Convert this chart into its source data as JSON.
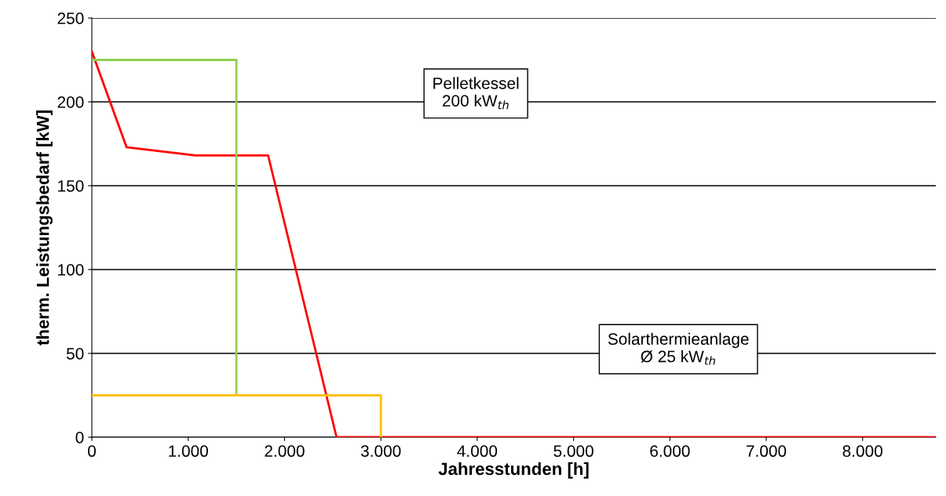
{
  "chart_data": {
    "type": "line",
    "xlabel": "Jahresstunden [h]",
    "ylabel": "therm. Leistungsbedarf [kW]",
    "series": [
      {
        "color": "#ff0000",
        "x": [
          0,
          360,
          1075,
          1830,
          2540,
          8760
        ],
        "values": [
          230,
          173,
          168,
          168,
          0,
          0
        ]
      },
      {
        "color": "#92d050",
        "x": [
          0,
          1500,
          1500
        ],
        "values": [
          225,
          225,
          25
        ]
      },
      {
        "color": "#ffc000",
        "x": [
          0,
          3000,
          3000
        ],
        "values": [
          25,
          25,
          0
        ]
      }
    ],
    "xlim": [
      0,
      8760
    ],
    "xticks": [
      0,
      {
        "value": 1000,
        "label": "1.000"
      },
      {
        "value": 2000,
        "label": "2.000"
      },
      {
        "value": 3000,
        "label": "3.000"
      },
      {
        "value": 4000,
        "label": "4.000"
      },
      {
        "value": 5000,
        "label": "5.000"
      },
      {
        "value": 6000,
        "label": "6.000"
      },
      {
        "value": 7000,
        "label": "7.000"
      },
      {
        "value": 8000,
        "label": "8.000"
      }
    ],
    "ylim": [
      0,
      250
    ],
    "yticks": [
      0,
      50,
      100,
      150,
      200,
      250
    ],
    "grid": "y",
    "marker": "none",
    "line_style": "solid",
    "annotations": [
      "Pelletkessel\n200 kW$_{th}$",
      "Solarthermieanlage\nØ 25 kW$_{th}$"
    ]
  }
}
